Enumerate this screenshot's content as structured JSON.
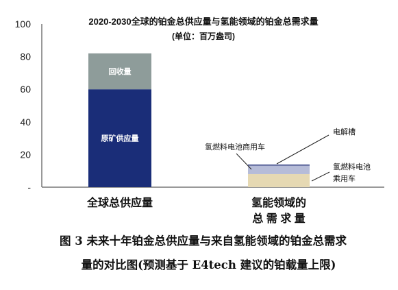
{
  "chart_data": {
    "type": "bar",
    "stacked": true,
    "title": "2020-2030全球的铂金总供应量与氢能领域的铂金总需求量",
    "subtitle": "(单位：百万盎司)",
    "ylim": [
      0,
      100
    ],
    "yticks": [
      {
        "value": 100,
        "label": "100"
      },
      {
        "value": 80,
        "label": "80"
      },
      {
        "value": 60,
        "label": "60"
      },
      {
        "value": 40,
        "label": "40"
      },
      {
        "value": 20,
        "label": "20"
      },
      {
        "value": 0,
        "label": "-"
      }
    ],
    "grid": false,
    "categories": [
      "全球总供应量",
      "氢能领域的\n总 需 求 量"
    ],
    "series": [
      {
        "name": "原矿供应量",
        "color": "#1a2d78",
        "values": [
          60,
          0
        ],
        "label_inside": true
      },
      {
        "name": "回收量",
        "color": "#8e9c9a",
        "values": [
          22,
          0
        ],
        "label_inside": true
      },
      {
        "name": "氢燃料电池乘用车",
        "color": "#e6d9b3",
        "values": [
          0,
          8
        ],
        "label_inside": false
      },
      {
        "name": "氢燃料电池商用车",
        "color": "#b6bcd8",
        "values": [
          0,
          5
        ],
        "label_inside": false
      },
      {
        "name": "电解槽",
        "color": "#6f78a8",
        "values": [
          0,
          1
        ],
        "label_inside": false
      }
    ]
  },
  "caption": {
    "line1": "图 3  未来十年铂金总供应量与来自氢能领域的铂金总需求",
    "line2": "量的对比图(预测基于 E4tech 建议的铂载量上限)"
  }
}
